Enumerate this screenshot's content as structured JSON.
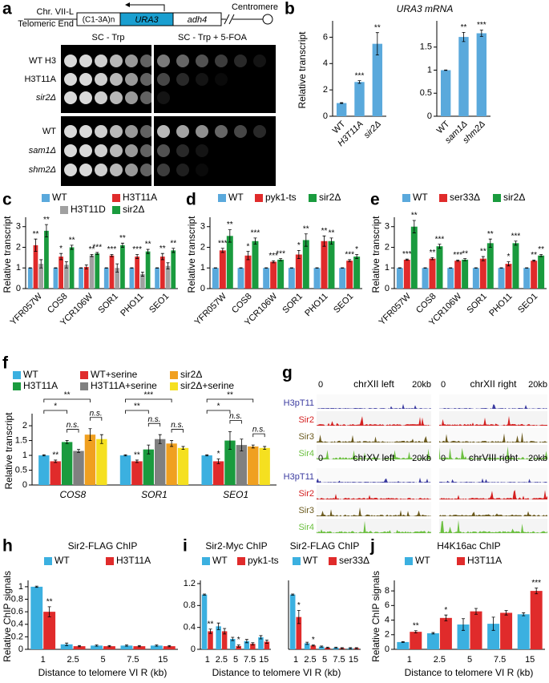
{
  "chart_data": [
    {
      "type": "bar",
      "panel": "b",
      "title": "URA3 mRNA",
      "ylabel": "Relative transcript",
      "categories": [
        "WT",
        "H3T11A",
        "sir2Δ"
      ],
      "values": [
        1,
        2.6,
        5.5
      ],
      "errors": [
        0.03,
        0.1,
        0.85
      ],
      "annotations": [
        null,
        "***",
        "**"
      ],
      "color": "#5aa9dc",
      "ylim": [
        0,
        7
      ],
      "yticks": [
        0,
        2,
        4,
        6
      ]
    },
    {
      "type": "bar",
      "categories": [
        "WT",
        "sam1Δ",
        "shm2Δ"
      ],
      "values": [
        1,
        1.72,
        1.8
      ],
      "errors": [
        0.005,
        0.1,
        0.07
      ],
      "annotations": [
        null,
        "**",
        "***"
      ],
      "color": "#5aa9dc",
      "ylim": [
        0,
        2
      ],
      "yticks": [
        0,
        0.5,
        1,
        1.5
      ]
    },
    {
      "type": "bar",
      "panel": "c",
      "ylabel": "Relative transcript",
      "categories": [
        "YFR057W",
        "COS8",
        "YCR106W",
        "SOR1",
        "PHO11",
        "SEO1"
      ],
      "ylim": [
        0,
        3.3
      ],
      "yticks": [
        0,
        1,
        2,
        3
      ],
      "series": [
        {
          "name": "WT",
          "color": "#5aa9dc",
          "values": [
            1,
            1,
            1,
            1,
            1,
            1
          ],
          "errors": [
            0.01,
            0.01,
            0.01,
            0.01,
            0.01,
            0.01
          ]
        },
        {
          "name": "H3T11A",
          "color": "#e02b2b",
          "values": [
            2.1,
            1.55,
            1.05,
            1.6,
            1.55,
            1.55
          ],
          "errors": [
            0.3,
            0.15,
            0.1,
            0.05,
            0.1,
            0.15
          ],
          "annotations": [
            "**",
            "*",
            null,
            "***",
            "***",
            "**"
          ]
        },
        {
          "name": "H3T11D",
          "color": "#a0a0a0",
          "values": [
            1.2,
            1.15,
            1.6,
            1.0,
            0.7,
            1.1
          ],
          "errors": [
            0.2,
            0.15,
            0.05,
            0.2,
            0.1,
            0.15
          ],
          "annotations": [
            null,
            null,
            "**",
            null,
            null,
            null
          ]
        },
        {
          "name": "sir2Δ",
          "color": "#1a9b3e",
          "values": [
            2.8,
            2.0,
            1.7,
            2.1,
            1.8,
            1.85
          ],
          "errors": [
            0.3,
            0.1,
            0.05,
            0.1,
            0.1,
            0.1
          ],
          "annotations": [
            "**",
            "**",
            "***",
            "**",
            "**",
            "**"
          ]
        }
      ]
    },
    {
      "type": "bar",
      "panel": "d",
      "ylabel": "Relative transcript",
      "categories": [
        "YFR057W",
        "COS8",
        "YCR106W",
        "SOR1",
        "PHO11",
        "SEO1"
      ],
      "ylim": [
        0,
        3.3
      ],
      "yticks": [
        0,
        1,
        2,
        3
      ],
      "series": [
        {
          "name": "WT",
          "color": "#5aa9dc",
          "values": [
            1,
            1,
            1,
            1,
            1,
            1
          ],
          "errors": [
            0.01,
            0.01,
            0.01,
            0.01,
            0.01,
            0.01
          ]
        },
        {
          "name": "pyk1-ts",
          "color": "#e02b2b",
          "values": [
            1.85,
            1.6,
            1.3,
            1.65,
            2.3,
            1.35
          ],
          "errors": [
            0.1,
            0.2,
            0.05,
            0.2,
            0.25,
            0.05
          ],
          "annotations": [
            "***",
            "*",
            "***",
            "*",
            "**",
            "***"
          ]
        },
        {
          "name": "sir2Δ",
          "color": "#1a9b3e",
          "values": [
            2.55,
            2.3,
            1.4,
            2.35,
            2.3,
            1.55
          ],
          "errors": [
            0.3,
            0.15,
            0.05,
            0.3,
            0.15,
            0.1
          ],
          "annotations": [
            "**",
            "***",
            "***",
            "**",
            "**",
            "*"
          ]
        }
      ]
    },
    {
      "type": "bar",
      "panel": "e",
      "ylabel": "Relative transcript",
      "categories": [
        "YFR057W",
        "COS8",
        "YCR106W",
        "SOR1",
        "PHO11",
        "SEO1"
      ],
      "ylim": [
        0,
        3.3
      ],
      "yticks": [
        0,
        1,
        2,
        3
      ],
      "series": [
        {
          "name": "WT",
          "color": "#5aa9dc",
          "values": [
            1,
            1,
            1,
            1,
            1,
            1
          ],
          "errors": [
            0.01,
            0.01,
            0.01,
            0.01,
            0.01,
            0.01
          ]
        },
        {
          "name": "ser33Δ",
          "color": "#e02b2b",
          "values": [
            1.4,
            1.45,
            1.35,
            1.45,
            1.2,
            1.35
          ],
          "errors": [
            0.03,
            0.05,
            0.03,
            0.1,
            0.1,
            0.03
          ],
          "annotations": [
            "***",
            "**",
            "***",
            "**",
            "*",
            "**"
          ]
        },
        {
          "name": "sir2Δ",
          "color": "#1a9b3e",
          "values": [
            3.0,
            2.05,
            1.4,
            2.2,
            2.2,
            1.6
          ],
          "errors": [
            0.3,
            0.1,
            0.05,
            0.2,
            0.1,
            0.05
          ],
          "annotations": [
            "**",
            "***",
            "**",
            "**",
            "***",
            "**"
          ]
        }
      ]
    },
    {
      "type": "bar",
      "panel": "f",
      "ylabel": "Relative transcript",
      "categories": [
        "COS8",
        "SOR1",
        "SEO1"
      ],
      "ylim": [
        0,
        2.3
      ],
      "yticks": [
        0,
        0.5,
        1,
        1.5,
        2
      ],
      "series": [
        {
          "name": "WT",
          "color": "#3bb0e0",
          "values": [
            1,
            1,
            1
          ],
          "errors": [
            0.02,
            0.02,
            0.02
          ]
        },
        {
          "name": "WT+serine",
          "color": "#e02b2b",
          "values": [
            0.8,
            0.8,
            0.8
          ],
          "errors": [
            0.04,
            0.04,
            0.08
          ],
          "annotations": [
            "**",
            "**",
            "*"
          ]
        },
        {
          "name": "H3T11A",
          "color": "#1a9b3e",
          "values": [
            1.45,
            1.2,
            1.5
          ],
          "errors": [
            0.05,
            0.15,
            0.3
          ]
        },
        {
          "name": "H3T11A+serine",
          "color": "#808080",
          "values": [
            1.15,
            1.55,
            1.35
          ],
          "errors": [
            0.05,
            0.15,
            0.2
          ]
        },
        {
          "name": "sir2Δ",
          "color": "#f0a020",
          "values": [
            1.7,
            1.4,
            1.3
          ],
          "errors": [
            0.2,
            0.1,
            0.05
          ]
        },
        {
          "name": "sir2Δ+serine",
          "color": "#f5e020",
          "values": [
            1.55,
            1.25,
            1.25
          ],
          "errors": [
            0.15,
            0.05,
            0.05
          ]
        }
      ],
      "brackets": [
        [
          "*",
          "**",
          "n.s.",
          "n.s."
        ],
        [
          "**",
          "***",
          "n.s.",
          "n.s."
        ],
        [
          "*",
          "**",
          "n.s.",
          "n.s."
        ]
      ]
    },
    {
      "type": "bar",
      "panel": "h",
      "title": "Sir2-FLAG ChIP",
      "ylabel": "Relative ChIP signals",
      "xlabel": "Distance to telomere VI R (kb)",
      "categories": [
        "1",
        "2.5",
        "5",
        "7.5",
        "15"
      ],
      "ylim": [
        0,
        1.05
      ],
      "yticks": [
        0,
        0.2,
        0.4,
        0.6,
        0.8,
        1
      ],
      "series": [
        {
          "name": "WT",
          "color": "#3bb0e0",
          "values": [
            1.0,
            0.08,
            0.06,
            0.06,
            0.06
          ],
          "errors": [
            0.01,
            0.02,
            0.01,
            0.01,
            0.01
          ]
        },
        {
          "name": "H3T11A",
          "color": "#e02b2b",
          "values": [
            0.6,
            0.05,
            0.05,
            0.05,
            0.05
          ],
          "errors": [
            0.08,
            0.01,
            0.01,
            0.01,
            0.01
          ],
          "annotations": [
            "**",
            null,
            null,
            null,
            null
          ]
        }
      ]
    },
    {
      "type": "bar",
      "panel": "i",
      "title": "Sir2-Myc ChIP",
      "categories": [
        "1",
        "2.5",
        "5",
        "7.5",
        "15"
      ],
      "ylim": [
        0,
        1.2
      ],
      "yticks": [
        0,
        0.4,
        0.8,
        1.2
      ],
      "series": [
        {
          "name": "WT",
          "color": "#3bb0e0",
          "values": [
            1.0,
            0.42,
            0.19,
            0.15,
            0.22
          ],
          "errors": [
            0.01,
            0.06,
            0.03,
            0.03,
            0.03
          ]
        },
        {
          "name": "pyk1-ts",
          "color": "#e02b2b",
          "values": [
            0.33,
            0.33,
            0.06,
            0.1,
            0.14
          ],
          "errors": [
            0.04,
            0.05,
            0.02,
            0.02,
            0.03
          ],
          "annotations": [
            "**",
            null,
            "*",
            null,
            null
          ]
        }
      ]
    },
    {
      "type": "bar",
      "title": "Sir2-FLAG ChIP",
      "xlabel": "Distance to telomere VI R (kb)",
      "categories": [
        "1",
        "2.5",
        "5",
        "7.5",
        "15"
      ],
      "ylim": [
        0,
        1.2
      ],
      "series": [
        {
          "name": "WT",
          "color": "#3bb0e0",
          "values": [
            1.0,
            0.11,
            0.05,
            0.03,
            0.02
          ],
          "errors": [
            0.01,
            0.02,
            0.01,
            0.01,
            0.01
          ]
        },
        {
          "name": "ser33Δ",
          "color": "#e02b2b",
          "values": [
            0.59,
            0.07,
            0.03,
            0.02,
            0.02
          ],
          "errors": [
            0.12,
            0.01,
            0.01,
            0.01,
            0.01
          ],
          "annotations": [
            "*",
            "*",
            null,
            null,
            null
          ]
        }
      ]
    },
    {
      "type": "bar",
      "panel": "j",
      "title": "H4K16ac ChIP",
      "ylabel": "Relative ChIP signals",
      "xlabel": "Distance to telomere VI R (kb)",
      "categories": [
        "1",
        "2.5",
        "5",
        "7.5",
        "15"
      ],
      "ylim": [
        0,
        9
      ],
      "yticks": [
        0,
        2,
        4,
        6,
        8
      ],
      "series": [
        {
          "name": "WT",
          "color": "#3bb0e0",
          "values": [
            1.0,
            2.2,
            3.4,
            3.5,
            4.8
          ],
          "errors": [
            0.05,
            0.1,
            0.8,
            0.9,
            0.2
          ]
        },
        {
          "name": "H3T11A",
          "color": "#e02b2b",
          "values": [
            2.4,
            4.3,
            5.2,
            5.0,
            8.0
          ],
          "errors": [
            0.15,
            0.4,
            0.4,
            0.3,
            0.4
          ],
          "annotations": [
            "**",
            "*",
            null,
            null,
            "***"
          ]
        }
      ]
    }
  ],
  "panel_a": {
    "label": "a",
    "chromosome": "Chr. VII-L",
    "telomere": "Telomeric End",
    "repeat": "(C1-3A)n",
    "gene": "URA3",
    "neighbor": "adh4",
    "centromere": "Centromere",
    "media": [
      "SC - Trp",
      "SC - Trp + 5-FOA"
    ],
    "strains": [
      "WT H3",
      "H3T11A",
      "sir2Δ",
      "WT",
      "sam1Δ",
      "shm2Δ"
    ]
  },
  "panel_g": {
    "label": "g",
    "regions": [
      {
        "name": "chrXII left",
        "start": "0",
        "end": "20kb"
      },
      {
        "name": "chrXII right",
        "start": "0",
        "end": "20kb"
      },
      {
        "name": "chrXV left",
        "start": "0",
        "end": "20kb"
      },
      {
        "name": "chrVIII right",
        "start": "0",
        "end": "20kb"
      }
    ],
    "tracks": [
      {
        "name": "H3pT11",
        "color": "#3b3ba0"
      },
      {
        "name": "Sir2",
        "color": "#d42020"
      },
      {
        "name": "Sir3",
        "color": "#6b5a1e"
      },
      {
        "name": "Sir4",
        "color": "#6cc040"
      }
    ]
  }
}
